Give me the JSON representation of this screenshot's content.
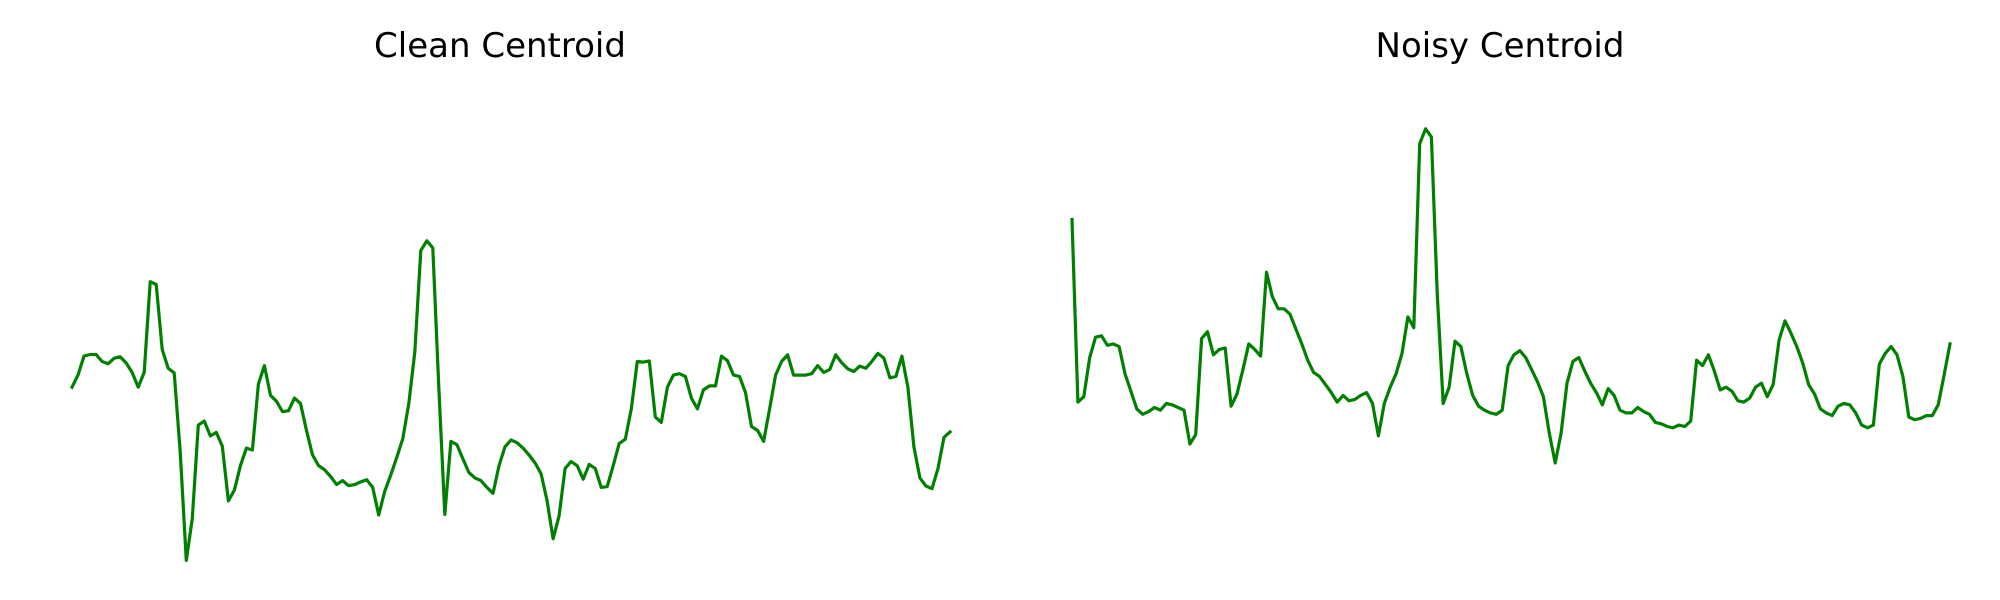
{
  "chart_data": [
    {
      "type": "line",
      "title": "Clean Centroid",
      "xlabel": "",
      "ylabel": "",
      "axes_visible": false,
      "grid": false,
      "ylim": [
        -0.62,
        1.08
      ],
      "color": "#008000",
      "series": [
        {
          "values": [
            0.0,
            0.045,
            0.115,
            0.121,
            0.121,
            0.095,
            0.087,
            0.107,
            0.113,
            0.09,
            0.055,
            0.0,
            0.055,
            0.39,
            0.38,
            0.14,
            0.07,
            0.053,
            -0.238,
            -0.64,
            -0.485,
            -0.14,
            -0.125,
            -0.18,
            -0.167,
            -0.218,
            -0.42,
            -0.38,
            -0.29,
            -0.225,
            -0.232,
            0.012,
            0.08,
            -0.03,
            -0.052,
            -0.09,
            -0.087,
            -0.04,
            -0.06,
            -0.16,
            -0.25,
            -0.29,
            -0.305,
            -0.33,
            -0.36,
            -0.345,
            -0.364,
            -0.36,
            -0.35,
            -0.342,
            -0.37,
            -0.472,
            -0.385,
            -0.325,
            -0.26,
            -0.19,
            -0.06,
            0.13,
            0.505,
            0.541,
            0.515,
            0.0,
            -0.47,
            -0.2,
            -0.212,
            -0.265,
            -0.315,
            -0.335,
            -0.345,
            -0.37,
            -0.392,
            -0.29,
            -0.22,
            -0.195,
            -0.205,
            -0.225,
            -0.25,
            -0.28,
            -0.32,
            -0.42,
            -0.56,
            -0.475,
            -0.3,
            -0.275,
            -0.29,
            -0.34,
            -0.285,
            -0.3,
            -0.37,
            -0.367,
            -0.29,
            -0.208,
            -0.192,
            -0.08,
            0.095,
            0.093,
            0.097,
            -0.11,
            -0.13,
            0.0,
            0.045,
            0.05,
            0.04,
            -0.04,
            -0.08,
            -0.01,
            0.005,
            0.005,
            0.115,
            0.098,
            0.045,
            0.04,
            -0.02,
            -0.145,
            -0.16,
            -0.2,
            -0.08,
            0.045,
            0.095,
            0.12,
            0.045,
            0.045,
            0.045,
            0.05,
            0.08,
            0.055,
            0.065,
            0.12,
            0.09,
            0.068,
            0.058,
            0.078,
            0.07,
            0.095,
            0.125,
            0.108,
            0.035,
            0.04,
            0.115,
            0.0,
            -0.22,
            -0.335,
            -0.365,
            -0.375,
            -0.3,
            -0.185,
            -0.165
          ]
        }
      ]
    },
    {
      "type": "line",
      "title": "Noisy Centroid",
      "xlabel": "",
      "ylabel": "",
      "axes_visible": false,
      "grid": false,
      "ylim": [
        -0.62,
        1.08
      ],
      "color": "#008000",
      "series": [
        {
          "values": [
            0.62,
            -0.055,
            -0.035,
            0.11,
            0.185,
            0.19,
            0.155,
            0.16,
            0.15,
            0.05,
            -0.015,
            -0.08,
            -0.1,
            -0.09,
            -0.075,
            -0.085,
            -0.06,
            -0.065,
            -0.075,
            -0.085,
            -0.21,
            -0.175,
            0.18,
            0.205,
            0.12,
            0.14,
            0.145,
            -0.07,
            -0.025,
            0.065,
            0.16,
            0.14,
            0.115,
            0.425,
            0.335,
            0.29,
            0.29,
            0.27,
            0.215,
            0.16,
            0.1,
            0.055,
            0.04,
            0.01,
            -0.02,
            -0.055,
            -0.03,
            -0.05,
            -0.045,
            -0.03,
            -0.02,
            -0.06,
            -0.18,
            -0.06,
            0.0,
            0.05,
            0.125,
            0.26,
            0.22,
            0.9,
            0.955,
            0.925,
            0.34,
            -0.06,
            0.0,
            0.17,
            0.15,
            0.05,
            -0.03,
            -0.07,
            -0.085,
            -0.095,
            -0.1,
            -0.085,
            0.08,
            0.12,
            0.135,
            0.11,
            0.065,
            0.02,
            -0.035,
            -0.17,
            -0.28,
            -0.17,
            0.015,
            0.095,
            0.11,
            0.06,
            0.015,
            -0.02,
            -0.065,
            -0.005,
            -0.03,
            -0.085,
            -0.095,
            -0.095,
            -0.075,
            -0.09,
            -0.1,
            -0.13,
            -0.135,
            -0.145,
            -0.15,
            -0.14,
            -0.145,
            -0.125,
            0.1,
            0.08,
            0.12,
            0.06,
            -0.01,
            0.0,
            -0.015,
            -0.05,
            -0.055,
            -0.04,
            0.0,
            0.015,
            -0.035,
            0.01,
            0.175,
            0.245,
            0.2,
            0.15,
            0.09,
            0.01,
            -0.025,
            -0.08,
            -0.095,
            -0.105,
            -0.07,
            -0.06,
            -0.065,
            -0.095,
            -0.14,
            -0.15,
            -0.14,
            0.085,
            0.125,
            0.15,
            0.12,
            0.04,
            -0.11,
            -0.12,
            -0.115,
            -0.105,
            -0.105,
            -0.065,
            0.045,
            0.16
          ]
        }
      ]
    }
  ]
}
